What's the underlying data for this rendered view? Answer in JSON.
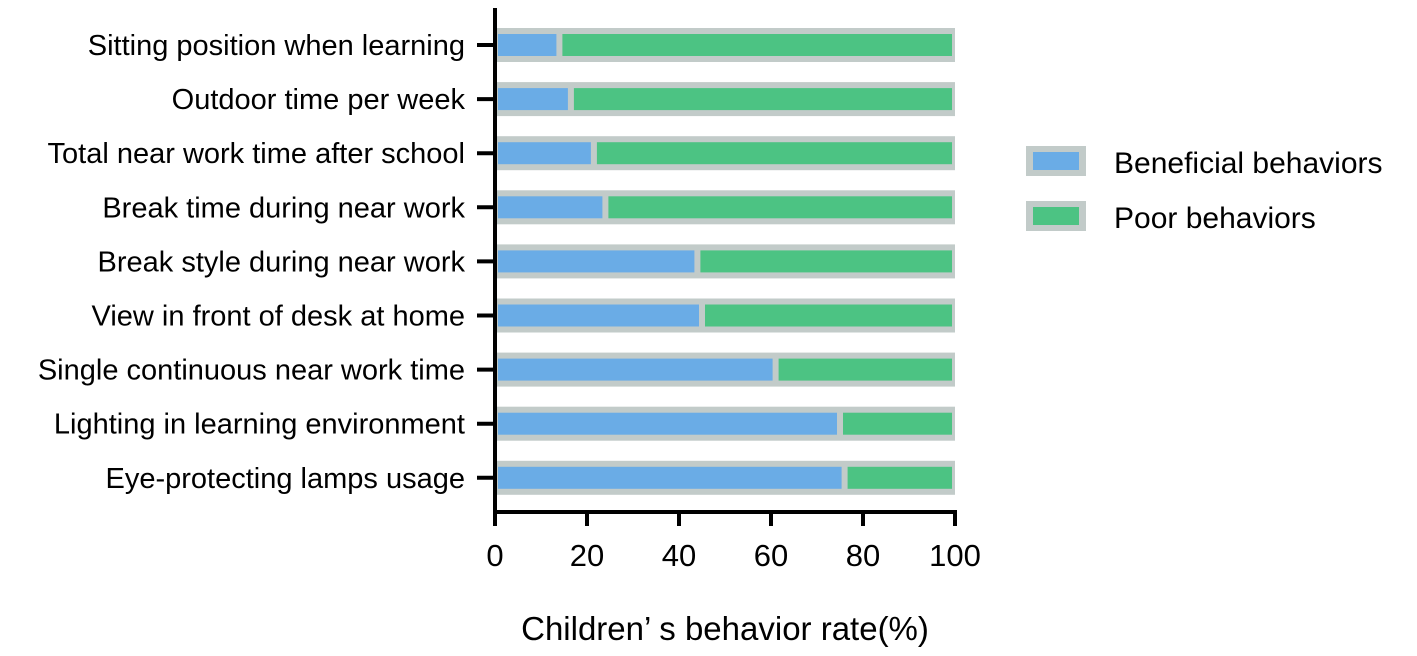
{
  "chart_data": {
    "type": "bar",
    "orientation": "horizontal",
    "stacked": true,
    "title": "",
    "xlabel": "Children’ s behavior rate(%)",
    "ylabel": "",
    "xlim": [
      0,
      100
    ],
    "xticks": [
      0,
      20,
      40,
      60,
      80,
      100
    ],
    "categories": [
      "Sitting position when learning",
      "Outdoor time per week",
      "Total near work time after school",
      "Break time during near work",
      "Break style during near work",
      "View in front of desk at home",
      "Single continuous near work time",
      "Lighting in learning environment",
      "Eye-protecting lamps usage"
    ],
    "series": [
      {
        "name": "Beneficial behaviors",
        "color": "#6aace6",
        "values": [
          14,
          16.5,
          21.5,
          24,
          44,
          45,
          61,
          75,
          76
        ]
      },
      {
        "name": "Poor behaviors",
        "color": "#4cc383",
        "values": [
          86,
          83.5,
          78.5,
          76,
          56,
          55,
          39,
          25,
          24
        ]
      }
    ],
    "bar_background_color": "#c2cbc9",
    "legend": {
      "position": "right",
      "entries": [
        "Beneficial behaviors",
        "Poor behaviors"
      ]
    },
    "grid": false
  }
}
